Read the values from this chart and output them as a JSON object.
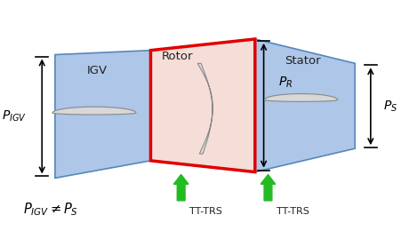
{
  "bg_color": "#ffffff",
  "igv_color": "#aec6e8",
  "rotor_color": "#f5ddd8",
  "rotor_border_color": "#e00000",
  "stator_color": "#aec6e8",
  "arrow_color": "#22bb22",
  "dim_color": "#000000",
  "labels": {
    "igv": "IGV",
    "rotor": "Rotor",
    "stator": "Stator",
    "p_igv": "$P_{IGV}$",
    "p_r": "$P_R$",
    "p_s": "$P_S$",
    "inequality": "$P_{IGV} \\neq P_S$",
    "tt_trs1": "TT-TRS",
    "tt_trs2": "TT-TRS"
  },
  "figsize": [
    4.51,
    2.6
  ],
  "dpi": 100
}
